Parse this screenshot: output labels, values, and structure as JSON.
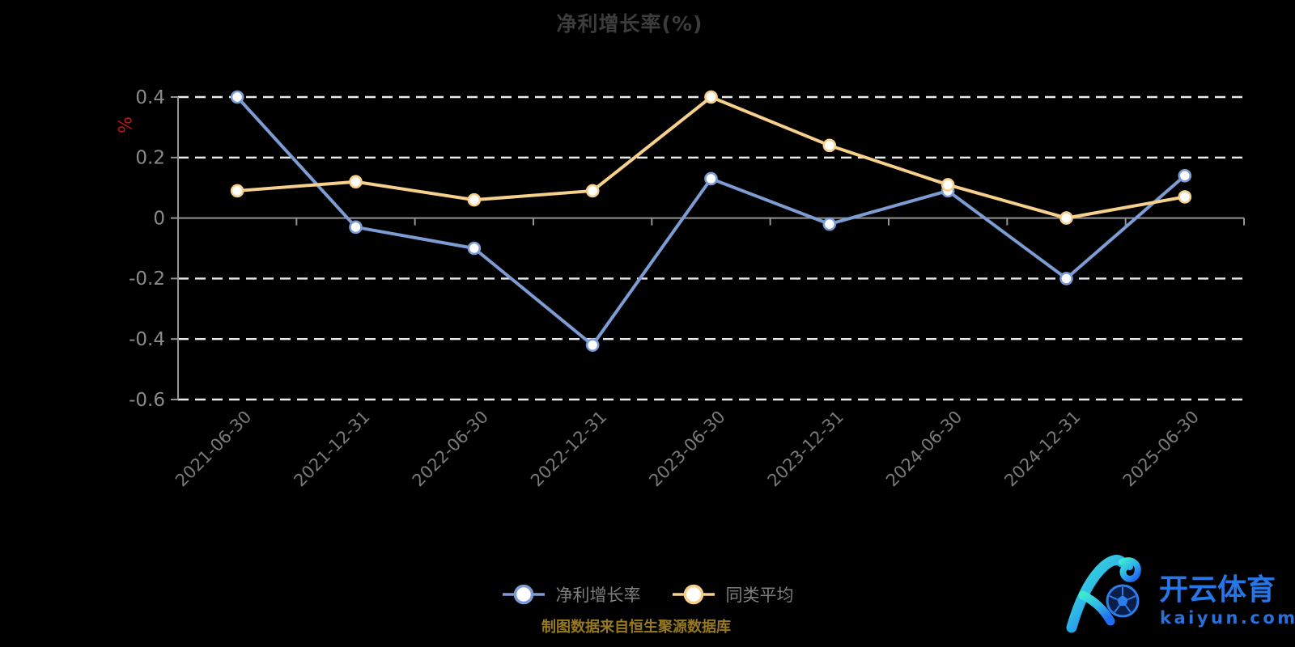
{
  "chart_data": {
    "type": "line",
    "title": "净利增长率(%)",
    "ylabel": "%",
    "categories": [
      "2021-06-30",
      "2021-12-31",
      "2022-06-30",
      "2022-12-31",
      "2023-06-30",
      "2023-12-31",
      "2024-06-30",
      "2024-12-31",
      "2025-06-30"
    ],
    "series": [
      {
        "name": "净利增长率",
        "color": "#7C9CD3",
        "values": [
          0.4,
          -0.03,
          -0.1,
          -0.42,
          0.13,
          -0.02,
          0.09,
          -0.2,
          0.14
        ]
      },
      {
        "name": "同类平均",
        "color": "#F7D08C",
        "values": [
          0.09,
          0.12,
          0.06,
          0.09,
          0.4,
          0.24,
          0.11,
          0.0,
          0.07
        ]
      }
    ],
    "ylim": [
      -0.6,
      0.4
    ],
    "yticks": [
      0.4,
      0.2,
      0,
      -0.2,
      -0.4,
      -0.6
    ],
    "grid": "horizontal-dashed",
    "legend_position": "bottom-center",
    "marker": "hollow-circle"
  },
  "footer": {
    "source_note": "制图数据来自恒生聚源数据库"
  },
  "watermark": {
    "brand": "开云体育",
    "domain": "kaiyun.com",
    "monogram": "K"
  },
  "colors": {
    "background": "#000000",
    "grid_dash": "#ebebeb",
    "axis": "#949494",
    "y_label": "#8a8a8a",
    "x_label": "#7a7a7a",
    "title": "#3c3c3c",
    "unit_label": "#c01616",
    "legend_text": "#7e7e7e",
    "footer_text": "#97791f",
    "watermark_blue": "#2776e8",
    "watermark_gradient_start": "#3fe8d0",
    "watermark_gradient_end": "#1f6df0"
  }
}
